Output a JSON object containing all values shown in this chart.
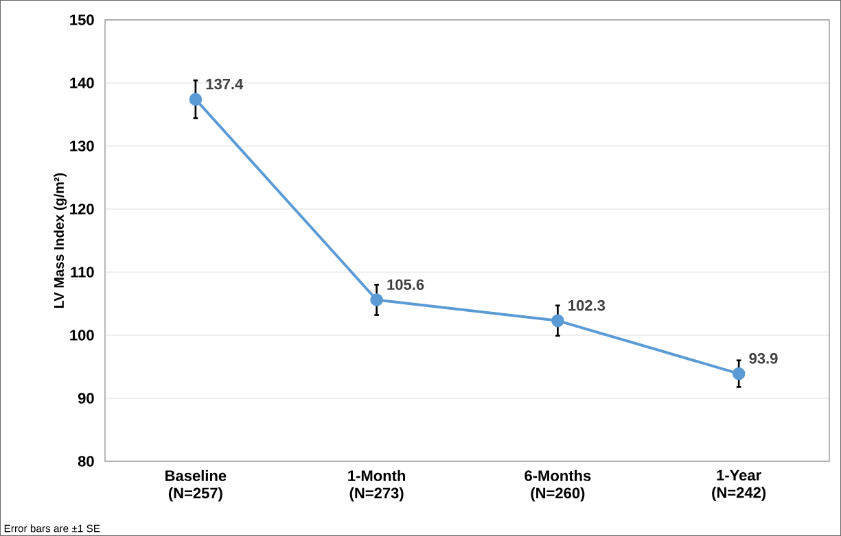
{
  "chart_data": {
    "type": "line",
    "ylabel": "LV Mass Index (g/m²)",
    "categories": [
      "Baseline (N=257)",
      "1-Month (N=273)",
      "6-Months (N=260)",
      "1-Year (N=242)"
    ],
    "values": [
      137.4,
      105.6,
      102.3,
      93.9
    ],
    "errors": [
      3.0,
      2.4,
      2.4,
      2.1
    ],
    "color": "#5b9bd5",
    "marker": "circle",
    "line_style": "solid",
    "ylim": [
      80,
      150
    ],
    "yticks": [
      80,
      90,
      100,
      110,
      120,
      130,
      140,
      150
    ],
    "grid": "y",
    "data_labels": true,
    "annotations": [
      "Error bars are ±1 SE"
    ]
  }
}
